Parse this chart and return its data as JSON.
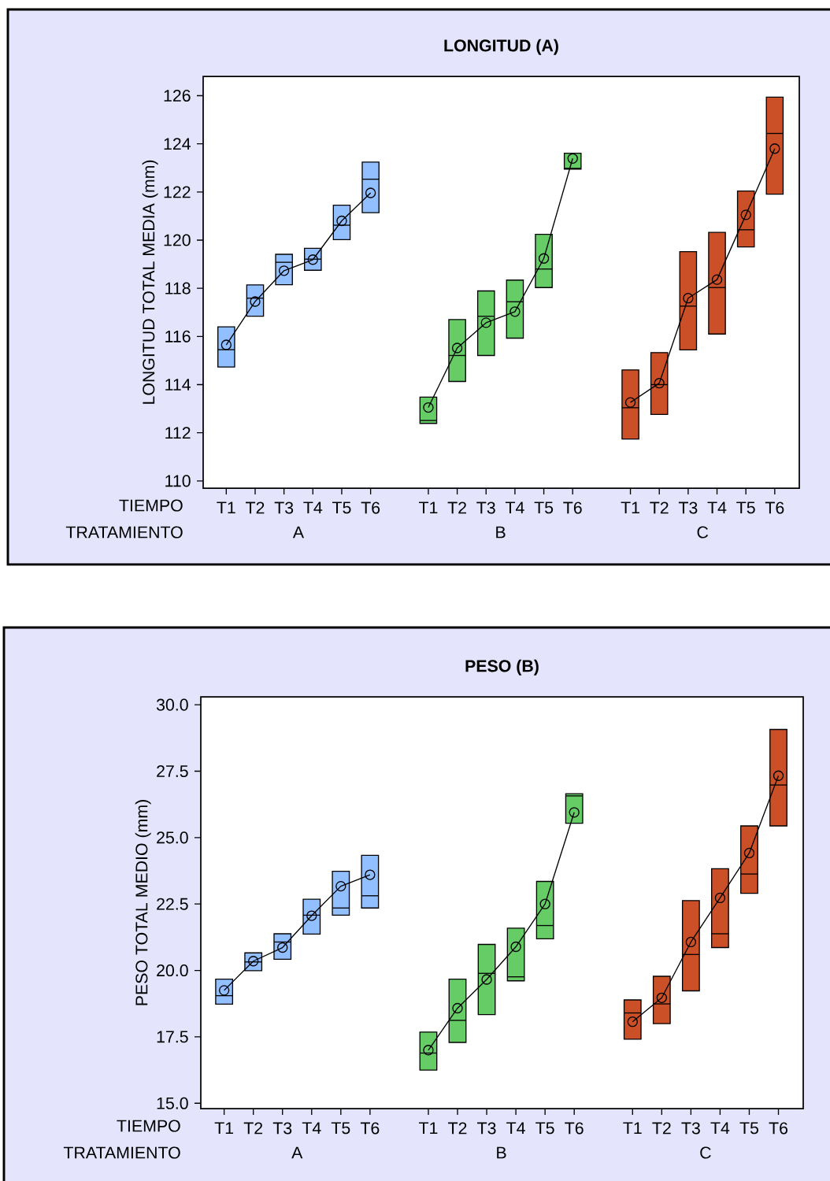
{
  "chart_data": [
    {
      "type": "box",
      "title": "LONGITUD (A)",
      "ylabel": "LONGITUD TOTAL MEDIA (mm)",
      "categories": [
        "T1",
        "T2",
        "T3",
        "T4",
        "T5",
        "T6",
        null,
        "T1",
        "T2",
        "T3",
        "T4",
        "T5",
        "T6",
        null,
        "T1",
        "T2",
        "T3",
        "T4",
        "T5",
        "T6"
      ],
      "annotations": [
        "TIEMPO",
        "TRATAMIENTO",
        "A",
        "B",
        "C"
      ],
      "ylim": [
        109.7,
        126.8
      ],
      "yticks": [
        110,
        112,
        114,
        116,
        118,
        120,
        122,
        124,
        126
      ],
      "colors": [
        "#91bfff",
        "#91bfff",
        "#91bfff",
        "#91bfff",
        "#91bfff",
        "#91bfff",
        null,
        "#66cc66",
        "#66cc66",
        "#66cc66",
        "#66cc66",
        "#66cc66",
        "#66cc66",
        null,
        "#cc5027",
        "#cc5027",
        "#cc5027",
        "#cc5027",
        "#cc5027",
        "#cc5027"
      ],
      "boxes": [
        {
          "low": 114.73,
          "q1": 114.73,
          "median": 115.45,
          "q3": 116.4,
          "high": 116.4
        },
        {
          "low": 116.84,
          "q1": 116.84,
          "median": 117.59,
          "q3": 118.14,
          "high": 118.14
        },
        {
          "low": 118.15,
          "q1": 118.15,
          "median": 119.08,
          "q3": 119.41,
          "high": 119.41
        },
        {
          "low": 118.75,
          "q1": 118.75,
          "median": 119.21,
          "q3": 119.66,
          "high": 119.66
        },
        {
          "low": 120.02,
          "q1": 120.02,
          "median": 120.62,
          "q3": 121.45,
          "high": 121.45
        },
        {
          "low": 121.14,
          "q1": 121.14,
          "median": 122.53,
          "q3": 123.24,
          "high": 123.24
        },
        null,
        {
          "low": 112.39,
          "q1": 112.39,
          "median": 112.51,
          "q3": 113.48,
          "high": 113.48
        },
        {
          "low": 114.13,
          "q1": 114.13,
          "median": 115.21,
          "q3": 116.7,
          "high": 116.7
        },
        {
          "low": 115.21,
          "q1": 115.21,
          "median": 116.84,
          "q3": 117.89,
          "high": 117.89
        },
        {
          "low": 115.93,
          "q1": 115.93,
          "median": 117.44,
          "q3": 118.34,
          "high": 118.34
        },
        {
          "low": 118.03,
          "q1": 118.03,
          "median": 118.8,
          "q3": 120.24,
          "high": 120.24
        },
        {
          "low": 122.95,
          "q1": 122.95,
          "median": 122.98,
          "q3": 123.61,
          "high": 123.61
        },
        null,
        {
          "low": 111.74,
          "q1": 111.74,
          "median": 113.04,
          "q3": 114.61,
          "high": 114.61
        },
        {
          "low": 112.76,
          "q1": 112.76,
          "median": 114.0,
          "q3": 115.33,
          "high": 115.33
        },
        {
          "low": 115.44,
          "q1": 115.44,
          "median": 117.26,
          "q3": 119.52,
          "high": 119.52
        },
        {
          "low": 116.1,
          "q1": 116.1,
          "median": 118.03,
          "q3": 120.32,
          "high": 120.32
        },
        {
          "low": 119.72,
          "q1": 119.72,
          "median": 120.43,
          "q3": 122.04,
          "high": 122.04
        },
        {
          "low": 121.91,
          "q1": 121.91,
          "median": 124.43,
          "q3": 125.94,
          "high": 125.94
        }
      ],
      "series": [
        {
          "type": "line",
          "color": "#000000",
          "marker": "circle",
          "values": [
            115.65,
            117.45,
            118.73,
            119.19,
            120.8,
            121.96,
            null,
            113.05,
            115.52,
            116.57,
            117.03,
            119.24,
            123.39,
            null,
            113.26,
            114.06,
            117.59,
            118.36,
            121.05,
            123.8
          ]
        }
      ]
    },
    {
      "type": "box",
      "title": "PESO (B)",
      "ylabel": "PESO TOTAL MEDIO (mm)",
      "categories": [
        "T1",
        "T2",
        "T3",
        "T4",
        "T5",
        "T6",
        null,
        "T1",
        "T2",
        "T3",
        "T4",
        "T5",
        "T6",
        null,
        "T1",
        "T2",
        "T3",
        "T4",
        "T5",
        "T6"
      ],
      "annotations": [
        "TIEMPO",
        "TRATAMIENTO",
        "A",
        "B",
        "C"
      ],
      "ylim": [
        14.8,
        30.3
      ],
      "yticks": [
        {
          "value": 15,
          "label": "15.0"
        },
        {
          "value": 17.5,
          "label": "17.5"
        },
        {
          "value": 20,
          "label": "20.0"
        },
        {
          "value": 22.5,
          "label": "22.5"
        },
        {
          "value": 25,
          "label": "25.0"
        },
        {
          "value": 27.5,
          "label": "27.5"
        },
        {
          "value": 30,
          "label": "30.0"
        }
      ],
      "colors": [
        "#91bfff",
        "#91bfff",
        "#91bfff",
        "#91bfff",
        "#91bfff",
        "#91bfff",
        null,
        "#66cc66",
        "#66cc66",
        "#66cc66",
        "#66cc66",
        "#66cc66",
        "#66cc66",
        null,
        "#cc5027",
        "#cc5027",
        "#cc5027",
        "#cc5027",
        "#cc5027",
        "#cc5027"
      ],
      "boxes": [
        {
          "low": 18.73,
          "q1": 18.73,
          "median": 19.05,
          "q3": 19.67,
          "high": 19.67
        },
        {
          "low": 19.99,
          "q1": 19.99,
          "median": 20.32,
          "q3": 20.66,
          "high": 20.66
        },
        {
          "low": 20.42,
          "q1": 20.42,
          "median": 21.07,
          "q3": 21.38,
          "high": 21.38
        },
        {
          "low": 21.37,
          "q1": 21.37,
          "median": 22.08,
          "q3": 22.68,
          "high": 22.68
        },
        {
          "low": 22.08,
          "q1": 22.08,
          "median": 22.35,
          "q3": 23.73,
          "high": 23.73
        },
        {
          "low": 22.35,
          "q1": 22.35,
          "median": 22.81,
          "q3": 24.33,
          "high": 24.33
        },
        null,
        {
          "low": 16.25,
          "q1": 16.25,
          "median": 16.89,
          "q3": 17.68,
          "high": 17.68
        },
        {
          "low": 17.29,
          "q1": 17.29,
          "median": 18.12,
          "q3": 19.67,
          "high": 19.67
        },
        {
          "low": 18.34,
          "q1": 18.34,
          "median": 19.89,
          "q3": 20.98,
          "high": 20.98
        },
        {
          "low": 19.61,
          "q1": 19.61,
          "median": 19.76,
          "q3": 21.59,
          "high": 21.59
        },
        {
          "low": 21.19,
          "q1": 21.19,
          "median": 21.69,
          "q3": 23.35,
          "high": 23.35
        },
        {
          "low": 25.54,
          "q1": 25.54,
          "median": 26.57,
          "q3": 26.65,
          "high": 26.65
        },
        null,
        {
          "low": 17.41,
          "q1": 17.41,
          "median": 18.4,
          "q3": 18.89,
          "high": 18.89
        },
        {
          "low": 18.0,
          "q1": 18.0,
          "median": 18.74,
          "q3": 19.78,
          "high": 19.78
        },
        {
          "low": 19.23,
          "q1": 19.23,
          "median": 20.6,
          "q3": 22.63,
          "high": 22.63
        },
        {
          "low": 20.86,
          "q1": 20.86,
          "median": 21.38,
          "q3": 23.83,
          "high": 23.83
        },
        {
          "low": 22.9,
          "q1": 22.9,
          "median": 23.63,
          "q3": 25.44,
          "high": 25.44
        },
        {
          "low": 25.44,
          "q1": 25.44,
          "median": 26.98,
          "q3": 29.07,
          "high": 29.07
        }
      ],
      "series": [
        {
          "type": "line",
          "color": "#000000",
          "marker": "circle",
          "values": [
            19.25,
            20.35,
            20.86,
            22.06,
            23.17,
            23.6,
            null,
            17.0,
            18.58,
            19.66,
            20.89,
            22.5,
            25.95,
            null,
            18.07,
            18.97,
            21.07,
            22.73,
            24.42,
            27.33
          ]
        }
      ]
    }
  ]
}
